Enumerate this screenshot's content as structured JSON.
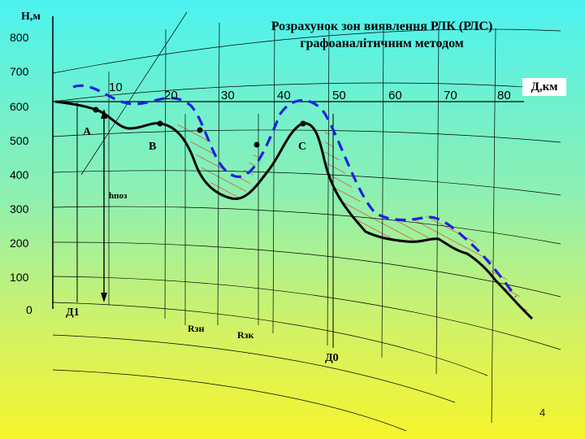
{
  "title": {
    "line1": "Розрахунок зон виявлення РЛК (РЛС)",
    "line2": "графоаналітичним методом"
  },
  "axes": {
    "y_label": "Н,м",
    "x_label": "Д,км",
    "y_ticks": [
      "800",
      "700",
      "600",
      "500",
      "400",
      "300",
      "200",
      "100",
      "0"
    ],
    "x_ticks": [
      "10",
      "20",
      "30",
      "40",
      "50",
      "60",
      "70",
      "80"
    ]
  },
  "points": {
    "a": "А",
    "b": "В",
    "c": "С"
  },
  "labels": {
    "h_poz": "hпоз",
    "d1": "Д1",
    "d0": "Д0",
    "rzn": "Rзн",
    "rzk": "Rзк"
  },
  "page_number": "4",
  "colors": {
    "terrain": "#000000",
    "visibility_line": "#1a22e0",
    "hatch": "#e03c1c",
    "grid": "#000000"
  }
}
